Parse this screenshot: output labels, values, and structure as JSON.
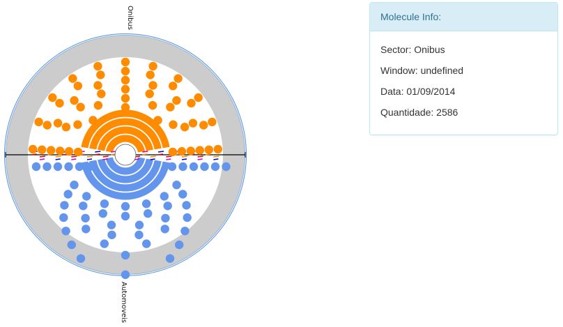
{
  "chart_data": {
    "type": "radial-molecule",
    "top_label": "Onibus",
    "bottom_label": "Automoveis",
    "ring_color": "#cccccc",
    "outer_ring_color": "#4a90e2",
    "top_color": "#ff8c00",
    "bottom_color": "#6495ed",
    "top_dot_rows": [
      5,
      7,
      9,
      9,
      11,
      11
    ],
    "bottom_dot_rows": [
      12,
      7,
      7,
      6,
      6,
      4,
      3,
      2,
      1
    ],
    "top_arc_bands": 4,
    "bottom_arc_bands": 4,
    "center_marks": {
      "colors": [
        "#0000cc",
        "#dd0000",
        "#cc00cc",
        "#ff8c00"
      ],
      "count": 24
    }
  },
  "info": {
    "title": "Molecule Info:",
    "rows": {
      "sector_prefix": "Sector: ",
      "sector": "Onibus",
      "window_prefix": "Window: ",
      "window": "undefined",
      "date_prefix": "Data: ",
      "date": "01/09/2014",
      "quantity_prefix": "Quantidade: ",
      "quantity": "2586"
    }
  }
}
